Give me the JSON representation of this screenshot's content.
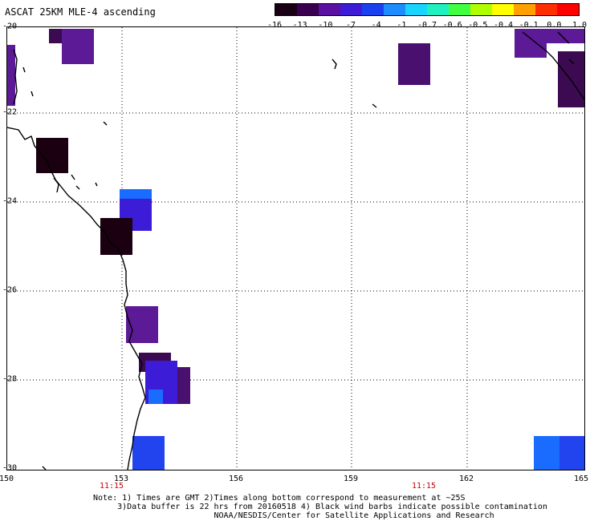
{
  "title": "ASCAT 25KM MLE-4 ascending",
  "colorbar": {
    "labels": [
      "-16",
      "-13",
      "-10",
      "-7",
      "-4",
      "-1",
      "-0.7",
      "-0.6",
      "-0.5",
      "-0.4",
      "-0.1",
      "0.0",
      "1.0"
    ],
    "colors": [
      "#1a0014",
      "#3a0050",
      "#5a10a0",
      "#3c1cd6",
      "#1a40f0",
      "#1c8cff",
      "#18d4ff",
      "#20f0c0",
      "#40ff40",
      "#b0ff00",
      "#ffff00",
      "#ffa000",
      "#ff3000",
      "#ff0000"
    ]
  },
  "axes": {
    "lat_labels": [
      "-20",
      "-22",
      "-24",
      "-26",
      "-28",
      "-30"
    ],
    "lon_labels": [
      "150",
      "153",
      "156",
      "159",
      "162",
      "165"
    ],
    "time_labels": [
      "11:15",
      "11:15"
    ]
  },
  "notes": [
    "Note: 1) Times are GMT 2)Times along bottom correspond to measurement at ~25S",
    "     3)Data buffer is 22 hrs from 20160518 4) Black wind barbs indicate possible contamination",
    "                         NOAA/NESDIS/Center for Satellite Applications and Research"
  ],
  "colors": {
    "dark_brown": "#1a0010",
    "purple": "#5c1a96",
    "dark_purple": "#3c0a50",
    "blue": "#2244ee",
    "light_blue": "#1a6cff"
  }
}
